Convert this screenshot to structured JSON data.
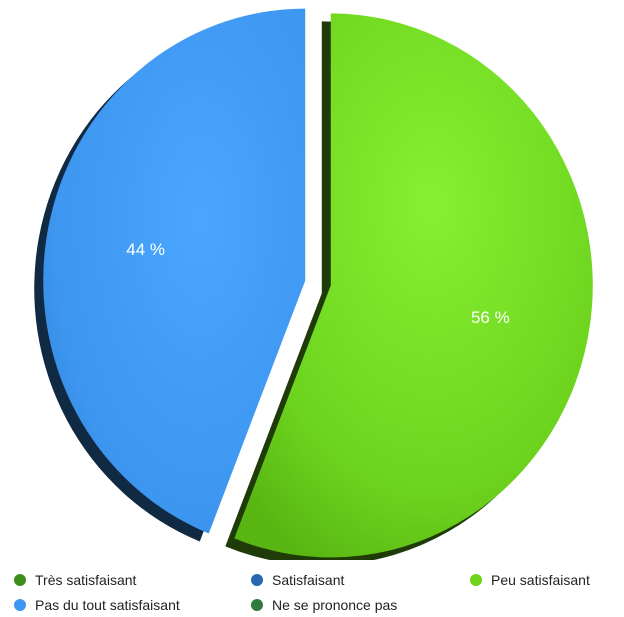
{
  "chart_data": {
    "type": "pie",
    "slices": [
      {
        "label": "Très satisfaisant",
        "value": 0,
        "color": "#3f8f1f"
      },
      {
        "label": "Satisfaisant",
        "value": 0,
        "color": "#2a67b3"
      },
      {
        "label": "Peu satisfaisant",
        "value": 56,
        "color": "#6fd41c",
        "display": "56 %"
      },
      {
        "label": "Pas du tout satisfaisant",
        "value": 44,
        "color": "#3d96ef",
        "display": "44 %"
      },
      {
        "label": "Ne se prononce pas",
        "value": 0,
        "color": "#2f7a3c"
      }
    ],
    "legend_position": "bottom",
    "exploded": true
  }
}
